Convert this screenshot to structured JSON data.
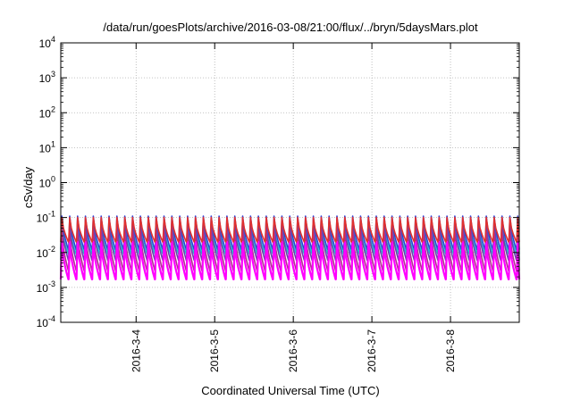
{
  "chart_data": {
    "type": "line",
    "title": "/data/run/goesPlots/archive/2016-03-08/21:00/flux/../bryn/5daysMars.plot",
    "xlabel": "Coordinated Universal Time (UTC)",
    "ylabel": "cSv/day",
    "x_range": [
      "2016-03-03T01:00",
      "2016-03-08T21:00"
    ],
    "x_ticks": [
      "2016-3-4",
      "2016-3-5",
      "2016-3-6",
      "2016-3-7",
      "2016-3-8"
    ],
    "y_scale": "log",
    "ylim": [
      0.0001,
      10000
    ],
    "y_ticks": [
      {
        "base": "10",
        "exp": "4"
      },
      {
        "base": "10",
        "exp": "3"
      },
      {
        "base": "10",
        "exp": "2"
      },
      {
        "base": "10",
        "exp": "1"
      },
      {
        "base": "10",
        "exp": "0"
      },
      {
        "base": "10",
        "exp": "-1"
      },
      {
        "base": "10",
        "exp": "-2"
      },
      {
        "base": "10",
        "exp": "-3"
      },
      {
        "base": "10",
        "exp": "-4"
      }
    ],
    "grid": true,
    "oscillation_period_hours": 2.4,
    "series": [
      {
        "color": "#2b3fd8",
        "peak": 0.11,
        "trough": 0.012
      },
      {
        "color": "#1ec8cc",
        "peak": 0.065,
        "trough": 0.009
      },
      {
        "color": "#6a3fb0",
        "peak": 0.07,
        "trough": 0.006
      },
      {
        "color": "#b03090",
        "peak": 0.04,
        "trough": 0.003
      },
      {
        "color": "#ff00ff",
        "peak": 0.02,
        "trough": 0.0017
      },
      {
        "color": "#e0302f",
        "peak": 0.1,
        "trough": 0.02
      }
    ]
  }
}
